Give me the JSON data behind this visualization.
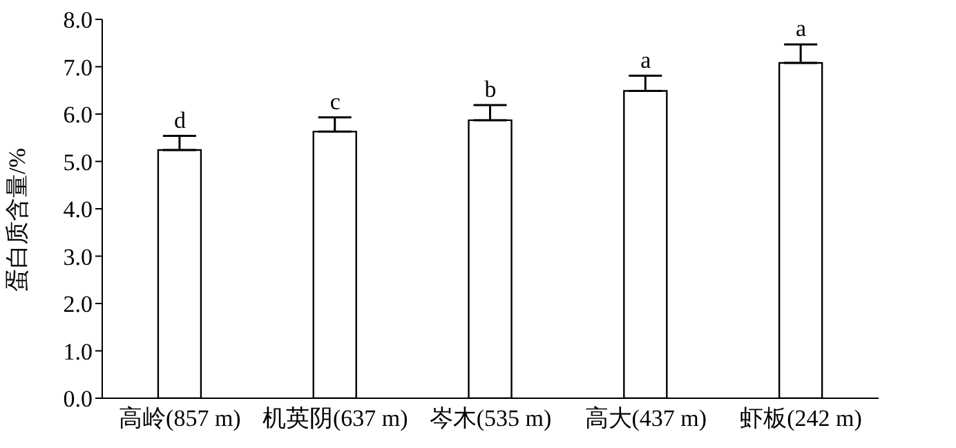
{
  "chart_data": {
    "type": "bar",
    "ylabel": "蛋白质含量/%",
    "categories": [
      "高岭(857 m)",
      "机英阴(637 m)",
      "岑木(535 m)",
      "高大(437 m)",
      "虾板(242 m)"
    ],
    "values": [
      5.24,
      5.63,
      5.87,
      6.49,
      7.08
    ],
    "errors": [
      [
        5.24,
        5.54
      ],
      [
        5.63,
        5.93
      ],
      [
        5.87,
        6.19
      ],
      [
        6.49,
        6.81
      ],
      [
        7.08,
        7.47
      ]
    ],
    "color": "#ffffff",
    "ylim": [
      0,
      8
    ],
    "yticks": [
      {
        "value": 0,
        "label": "0.0"
      },
      {
        "value": 1,
        "label": "1.0"
      },
      {
        "value": 2,
        "label": "2.0"
      },
      {
        "value": 3,
        "label": "3.0"
      },
      {
        "value": 4,
        "label": "4.0"
      },
      {
        "value": 5,
        "label": "5.0"
      },
      {
        "value": 6,
        "label": "6.0"
      },
      {
        "value": 7,
        "label": "7.0"
      },
      {
        "value": 8,
        "label": "8.0"
      }
    ],
    "annotations": [
      {
        "text": "d",
        "x": "高岭(857 m)",
        "y": 5.54
      },
      {
        "text": "c",
        "x": "机英阴(637 m)",
        "y": 5.93
      },
      {
        "text": "b",
        "x": "岑木(535 m)",
        "y": 6.19
      },
      {
        "text": "a",
        "x": "高大(437 m)",
        "y": 6.81
      },
      {
        "text": "a",
        "x": "虾板(242 m)",
        "y": 7.47
      }
    ],
    "grid": false,
    "legend": false
  }
}
